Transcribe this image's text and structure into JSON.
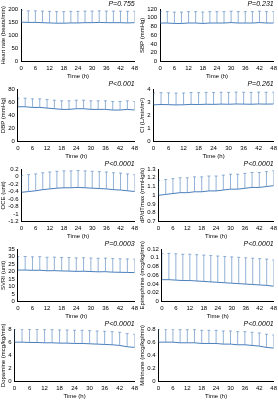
{
  "chart_data": [
    {
      "type": "line",
      "annotation": "P=0.755",
      "x_label": "Time (h)",
      "y_label": "Heart rate (beats/min)",
      "x": [
        0,
        3,
        6,
        9,
        12,
        15,
        18,
        21,
        24,
        27,
        30,
        33,
        36,
        39,
        42,
        45,
        48
      ],
      "values": [
        150,
        149,
        149,
        148,
        147,
        146,
        146,
        147,
        147,
        148,
        148,
        149,
        148,
        148,
        148,
        147,
        148
      ],
      "errors": [
        44,
        44,
        44,
        44,
        44,
        44,
        44,
        44,
        44,
        44,
        44,
        44,
        44,
        44,
        44,
        44,
        44
      ],
      "xlim": [
        0,
        48
      ],
      "xticks": [
        0,
        6,
        12,
        18,
        24,
        30,
        36,
        42,
        48
      ],
      "ylim": [
        0,
        200
      ],
      "yticks": [
        0,
        50,
        100,
        150,
        200
      ],
      "color": "#4a7ebb",
      "grid": false
    },
    {
      "type": "line",
      "annotation": "P=0.231",
      "x_label": "Time (h)",
      "y_label": "SBP (mmHg)",
      "x": [
        0,
        3,
        6,
        9,
        12,
        15,
        18,
        21,
        24,
        27,
        30,
        33,
        36,
        39,
        42,
        45,
        48
      ],
      "values": [
        88,
        88,
        87,
        87,
        88,
        88,
        87,
        88,
        88,
        88,
        89,
        88,
        88,
        88,
        89,
        88,
        88
      ],
      "errors": [
        26,
        26,
        26,
        26,
        26,
        26,
        26,
        26,
        26,
        26,
        26,
        26,
        26,
        26,
        26,
        26,
        26
      ],
      "xlim": [
        0,
        48
      ],
      "xticks": [
        0,
        6,
        12,
        18,
        24,
        30,
        36,
        42,
        48
      ],
      "ylim": [
        0,
        120
      ],
      "yticks": [
        0,
        20,
        40,
        60,
        80,
        100,
        120
      ],
      "color": "#4a7ebb",
      "grid": false
    },
    {
      "type": "line",
      "annotation": "P<0.001",
      "x_label": "Time (h)",
      "y_label": "DBP (mmHg)",
      "x": [
        0,
        3,
        6,
        9,
        12,
        15,
        18,
        21,
        24,
        27,
        30,
        33,
        36,
        39,
        42,
        45,
        48
      ],
      "values": [
        53,
        53,
        52,
        52,
        51,
        50,
        49,
        49,
        50,
        50,
        49,
        49,
        49,
        48,
        48,
        49,
        48
      ],
      "errors": [
        13,
        13,
        13,
        13,
        13,
        13,
        13,
        13,
        13,
        13,
        13,
        13,
        13,
        13,
        13,
        13,
        13
      ],
      "xlim": [
        0,
        48
      ],
      "xticks": [
        0,
        6,
        12,
        18,
        24,
        30,
        36,
        42,
        48
      ],
      "ylim": [
        0,
        80
      ],
      "yticks": [
        0,
        20,
        40,
        60,
        80
      ],
      "color": "#4a7ebb",
      "grid": false
    },
    {
      "type": "line",
      "annotation": "P=0.261",
      "x_label": "Time (h)",
      "y_label": "CI (L/min/m²)",
      "x": [
        0,
        3,
        6,
        9,
        12,
        15,
        18,
        21,
        24,
        27,
        30,
        33,
        36,
        39,
        42,
        45,
        48
      ],
      "values": [
        2.8,
        2.82,
        2.81,
        2.79,
        2.8,
        2.83,
        2.82,
        2.84,
        2.83,
        2.85,
        2.84,
        2.86,
        2.85,
        2.84,
        2.86,
        2.85,
        2.86
      ],
      "errors": [
        0.9,
        0.9,
        0.9,
        0.9,
        0.9,
        0.9,
        0.9,
        0.9,
        0.9,
        0.9,
        0.9,
        0.9,
        0.9,
        0.9,
        0.9,
        0.9,
        0.9
      ],
      "xlim": [
        0,
        48
      ],
      "xticks": [
        0,
        6,
        12,
        18,
        24,
        30,
        36,
        42,
        48
      ],
      "ylim": [
        0,
        4
      ],
      "yticks": [
        0,
        1,
        2,
        3,
        4
      ],
      "color": "#4a7ebb",
      "grid": false
    },
    {
      "type": "line",
      "annotation": "P<0.0001",
      "x_label": "Time (h)",
      "y_label": "OCE (unit)",
      "x": [
        0,
        3,
        6,
        9,
        12,
        15,
        18,
        21,
        24,
        27,
        30,
        33,
        36,
        39,
        42,
        45,
        48
      ],
      "values": [
        -0.42,
        -0.4,
        -0.38,
        -0.35,
        -0.33,
        -0.31,
        -0.3,
        -0.3,
        -0.29,
        -0.3,
        -0.31,
        -0.32,
        -0.33,
        -0.35,
        -0.36,
        -0.38,
        -0.4
      ],
      "errors": [
        0.45,
        0.45,
        0.45,
        0.45,
        0.45,
        0.45,
        0.45,
        0.45,
        0.45,
        0.45,
        0.45,
        0.45,
        0.45,
        0.45,
        0.45,
        0.45,
        0.45
      ],
      "xlim": [
        0,
        48
      ],
      "xticks": [
        0,
        6,
        12,
        18,
        24,
        30,
        36,
        42,
        48
      ],
      "ylim": [
        -1.2,
        0.2
      ],
      "yticks": [
        -1.2,
        -1,
        -0.8,
        -0.6,
        -0.4,
        -0.2,
        0,
        0.2
      ],
      "color": "#4a7ebb",
      "grid": false
    },
    {
      "type": "line",
      "annotation": "P<0.0001",
      "x_label": "Time (h)",
      "y_label": "dP/dTmax (mmHg/s)",
      "x": [
        0,
        3,
        6,
        9,
        12,
        15,
        18,
        21,
        24,
        27,
        30,
        33,
        36,
        39,
        42,
        45,
        48
      ],
      "values": [
        1.0,
        1.01,
        1.02,
        1.03,
        1.03,
        1.04,
        1.04,
        1.05,
        1.05,
        1.06,
        1.07,
        1.07,
        1.08,
        1.09,
        1.09,
        1.1,
        1.11
      ],
      "errors": [
        0.17,
        0.17,
        0.17,
        0.17,
        0.17,
        0.17,
        0.17,
        0.17,
        0.17,
        0.17,
        0.17,
        0.17,
        0.17,
        0.17,
        0.17,
        0.17,
        0.17
      ],
      "xlim": [
        0,
        48
      ],
      "xticks": [
        0,
        6,
        12,
        18,
        24,
        30,
        36,
        42,
        48
      ],
      "ylim": [
        0.7,
        1.3
      ],
      "yticks": [
        0.7,
        0.8,
        0.9,
        1,
        1.1,
        1.2,
        1.3
      ],
      "color": "#4a7ebb",
      "grid": false
    },
    {
      "type": "line",
      "annotation": "P=0.0003",
      "x_label": "Time (h)",
      "y_label": "SVRI (unit)",
      "x": [
        0,
        3,
        6,
        9,
        12,
        15,
        18,
        21,
        24,
        27,
        30,
        33,
        36,
        39,
        42,
        45,
        48
      ],
      "values": [
        21,
        21,
        20.8,
        20.9,
        20.5,
        20.6,
        20.4,
        20.3,
        20.1,
        20.2,
        20,
        19.8,
        19.9,
        19.6,
        19.5,
        19.4,
        19.3
      ],
      "errors": [
        9,
        9,
        9,
        9,
        9,
        9,
        9,
        9,
        9,
        9,
        9,
        9,
        9,
        9,
        9,
        9,
        9
      ],
      "xlim": [
        0,
        48
      ],
      "xticks": [
        0,
        6,
        12,
        18,
        24,
        30,
        36,
        42,
        48
      ],
      "ylim": [
        0,
        35
      ],
      "yticks": [
        0,
        5,
        10,
        15,
        20,
        25,
        30,
        35
      ],
      "color": "#4a7ebb",
      "grid": false
    },
    {
      "type": "line",
      "annotation": "P<0.0001",
      "x_label": "Time (h)",
      "y_label": "Epinephrine (mcg/kg/min)",
      "x": [
        0,
        3,
        6,
        9,
        12,
        15,
        18,
        21,
        24,
        27,
        30,
        33,
        36,
        39,
        42,
        45,
        48
      ],
      "values": [
        0.05,
        0.05,
        0.049,
        0.048,
        0.048,
        0.047,
        0.046,
        0.045,
        0.044,
        0.043,
        0.042,
        0.041,
        0.04,
        0.039,
        0.038,
        0.037,
        0.035
      ],
      "errors": [
        0.06,
        0.06,
        0.06,
        0.06,
        0.06,
        0.06,
        0.06,
        0.06,
        0.06,
        0.06,
        0.06,
        0.06,
        0.06,
        0.06,
        0.06,
        0.06,
        0.06
      ],
      "xlim": [
        0,
        48
      ],
      "xticks": [
        0,
        6,
        12,
        18,
        24,
        30,
        36,
        42,
        48
      ],
      "ylim": [
        0,
        0.12
      ],
      "yticks": [
        0,
        0.02,
        0.04,
        0.06,
        0.08,
        0.1,
        0.12
      ],
      "color": "#4a7ebb",
      "grid": false
    },
    {
      "type": "line",
      "annotation": "P<0.0001",
      "x_label": "Time (h)",
      "y_label": "Dopamine (mcg/kg/min)",
      "x": [
        0,
        3,
        6,
        9,
        12,
        15,
        18,
        21,
        24,
        27,
        30,
        33,
        36,
        39,
        42,
        45,
        48
      ],
      "values": [
        6,
        6,
        5.95,
        5.95,
        5.9,
        5.9,
        5.85,
        5.85,
        5.8,
        5.8,
        5.75,
        5.7,
        5.65,
        5.6,
        5.5,
        5.3,
        5.2
      ],
      "errors": [
        2,
        2,
        2,
        2,
        2,
        2,
        2,
        2,
        2,
        2,
        2,
        2,
        2,
        2,
        2,
        2,
        2
      ],
      "xlim": [
        0,
        48
      ],
      "xticks": [
        0,
        6,
        12,
        18,
        24,
        30,
        36,
        42,
        48
      ],
      "ylim": [
        0,
        8
      ],
      "yticks": [
        0,
        2,
        4,
        6,
        8
      ],
      "color": "#4a7ebb",
      "grid": false
    },
    {
      "type": "line",
      "annotation": "P<0.0001",
      "x_label": "Time (h)",
      "y_label": "Milrinone (mcg/kg/min)",
      "x": [
        0,
        3,
        6,
        9,
        12,
        15,
        18,
        21,
        24,
        27,
        30,
        33,
        36,
        39,
        42,
        45,
        48
      ],
      "values": [
        0.6,
        0.6,
        0.6,
        0.59,
        0.59,
        0.59,
        0.58,
        0.58,
        0.58,
        0.57,
        0.57,
        0.56,
        0.56,
        0.55,
        0.54,
        0.52,
        0.51
      ],
      "errors": [
        0.2,
        0.2,
        0.2,
        0.2,
        0.2,
        0.2,
        0.2,
        0.2,
        0.2,
        0.2,
        0.2,
        0.2,
        0.2,
        0.2,
        0.2,
        0.2,
        0.2
      ],
      "xlim": [
        0,
        48
      ],
      "xticks": [
        0,
        6,
        12,
        18,
        24,
        30,
        36,
        42,
        48
      ],
      "ylim": [
        0,
        0.8
      ],
      "yticks": [
        0,
        0.2,
        0.4,
        0.6,
        0.8
      ],
      "color": "#4a7ebb",
      "grid": false
    }
  ]
}
